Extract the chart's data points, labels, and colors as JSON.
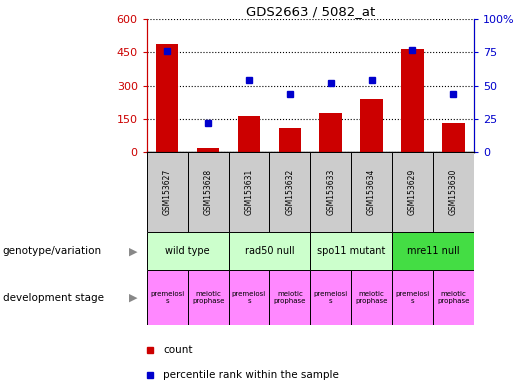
{
  "title": "GDS2663 / 5082_at",
  "samples": [
    "GSM153627",
    "GSM153628",
    "GSM153631",
    "GSM153632",
    "GSM153633",
    "GSM153634",
    "GSM153629",
    "GSM153630"
  ],
  "counts": [
    490,
    20,
    165,
    110,
    175,
    240,
    465,
    130
  ],
  "percentiles": [
    76,
    22,
    54,
    44,
    52,
    54,
    77,
    44
  ],
  "left_ylim": [
    0,
    600
  ],
  "right_ylim": [
    0,
    100
  ],
  "left_yticks": [
    0,
    150,
    300,
    450,
    600
  ],
  "right_yticks": [
    0,
    25,
    50,
    75,
    100
  ],
  "right_yticklabels": [
    "0",
    "25",
    "50",
    "75",
    "100%"
  ],
  "bar_color": "#cc0000",
  "dot_color": "#0000cc",
  "left_axis_color": "#cc0000",
  "right_axis_color": "#0000cc",
  "genotype_groups": [
    {
      "label": "wild type",
      "start": 0,
      "end": 2,
      "color": "#ccffcc"
    },
    {
      "label": "rad50 null",
      "start": 2,
      "end": 4,
      "color": "#ccffcc"
    },
    {
      "label": "spo11 mutant",
      "start": 4,
      "end": 6,
      "color": "#ccffcc"
    },
    {
      "label": "mre11 null",
      "start": 6,
      "end": 8,
      "color": "#44dd44"
    }
  ],
  "development_stages": [
    {
      "label": "premeiosi\ns",
      "start": 0,
      "end": 1,
      "color": "#ff88ff"
    },
    {
      "label": "meiotic\nprophase",
      "start": 1,
      "end": 2,
      "color": "#ff88ff"
    },
    {
      "label": "premeiosi\ns",
      "start": 2,
      "end": 3,
      "color": "#ff88ff"
    },
    {
      "label": "meiotic\nprophase",
      "start": 3,
      "end": 4,
      "color": "#ff88ff"
    },
    {
      "label": "premeiosi\ns",
      "start": 4,
      "end": 5,
      "color": "#ff88ff"
    },
    {
      "label": "meiotic\nprophase",
      "start": 5,
      "end": 6,
      "color": "#ff88ff"
    },
    {
      "label": "premeiosi\ns",
      "start": 6,
      "end": 7,
      "color": "#ff88ff"
    },
    {
      "label": "meiotic\nprophase",
      "start": 7,
      "end": 8,
      "color": "#ff88ff"
    }
  ],
  "sample_box_color": "#cccccc",
  "left_label": "genotype/variation",
  "right_label": "development stage",
  "legend_count": "count",
  "legend_pct": "percentile rank within the sample"
}
